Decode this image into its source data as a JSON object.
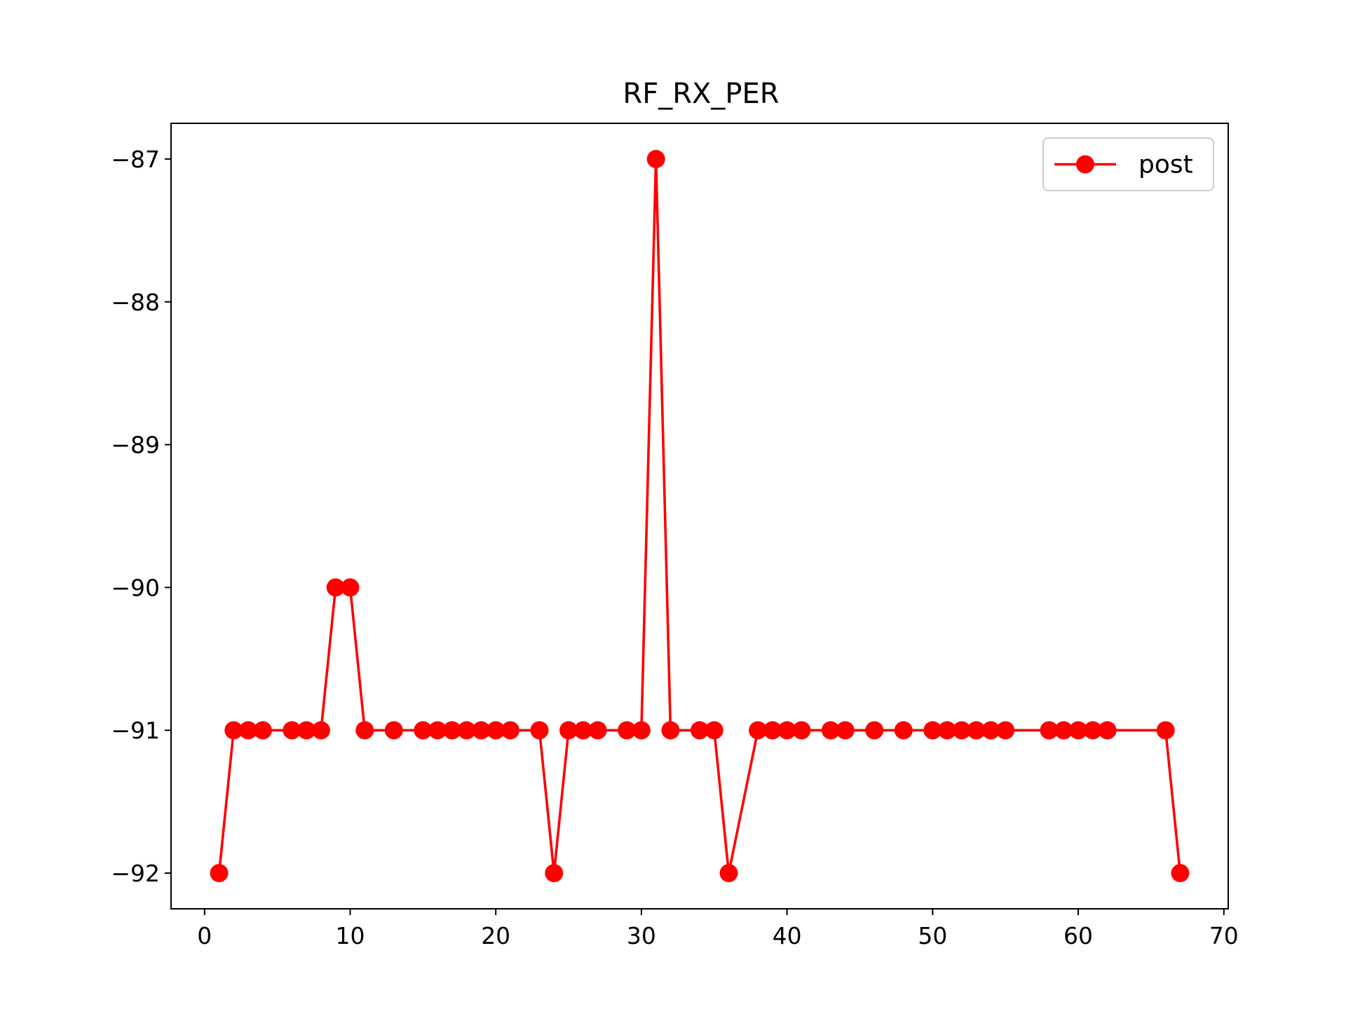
{
  "chart_data": {
    "type": "line",
    "title": "RF_RX_PER",
    "xlabel": "",
    "ylabel": "",
    "xlim": [
      -2.3,
      70.3
    ],
    "ylim": [
      -92.25,
      -86.75
    ],
    "xticks": [
      0,
      10,
      20,
      30,
      40,
      50,
      60,
      70
    ],
    "yticks": [
      -87,
      -88,
      -89,
      -90,
      -91,
      -92
    ],
    "xtick_labels": [
      "0",
      "10",
      "20",
      "30",
      "40",
      "50",
      "60",
      "70"
    ],
    "ytick_labels": [
      "−87",
      "−88",
      "−89",
      "−90",
      "−91",
      "−92"
    ],
    "grid": false,
    "legend_position": "top-right",
    "series": [
      {
        "name": "post",
        "color": "#ff0000",
        "marker": "circle",
        "x": [
          1,
          2,
          3,
          4,
          6,
          7,
          8,
          9,
          10,
          11,
          13,
          15,
          16,
          17,
          18,
          19,
          20,
          21,
          23,
          24,
          25,
          26,
          27,
          29,
          30,
          31,
          32,
          34,
          35,
          36,
          38,
          39,
          40,
          41,
          43,
          44,
          46,
          48,
          50,
          51,
          52,
          53,
          54,
          55,
          58,
          59,
          60,
          61,
          62,
          66,
          67
        ],
        "y": [
          -92,
          -91,
          -91,
          -91,
          -91,
          -91,
          -91,
          -90,
          -90,
          -91,
          -91,
          -91,
          -91,
          -91,
          -91,
          -91,
          -91,
          -91,
          -91,
          -92,
          -91,
          -91,
          -91,
          -91,
          -91,
          -87,
          -91,
          -91,
          -91,
          -92,
          -91,
          -91,
          -91,
          -91,
          -91,
          -91,
          -91,
          -91,
          -91,
          -91,
          -91,
          -91,
          -91,
          -91,
          -91,
          -91,
          -91,
          -91,
          -91,
          -91,
          -92
        ]
      }
    ]
  }
}
